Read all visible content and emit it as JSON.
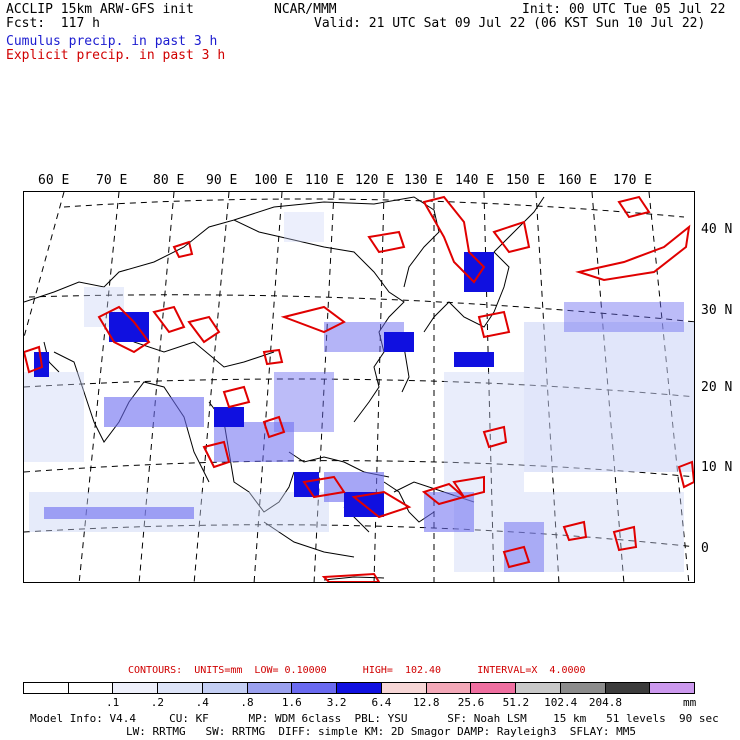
{
  "header": {
    "title_left": "ACCLIP 15km ARW-GFS init",
    "fcst": "Fcst:  117 h",
    "center": "NCAR/MMM",
    "init": "Init: 00 UTC Tue 05 Jul 22",
    "valid": "Valid: 21 UTC Sat 09 Jul 22 (06 KST Sun 10 Jul 22)",
    "cumulus_legend": "Cumulus precip. in past 3 h",
    "explicit_legend": "Explicit precip. in past 3 h"
  },
  "map": {
    "longitude_labels": [
      "60 E",
      "70 E",
      "80 E",
      "90 E",
      "100 E",
      "110 E",
      "120 E",
      "130 E",
      "140 E",
      "150 E",
      "160 E",
      "170 E"
    ],
    "latitude_labels": [
      "40 N",
      "30 N",
      "20 N",
      "10 N",
      "0"
    ],
    "colors": {
      "coast": "#000000",
      "explicit": "#e00000",
      "cumulus_light": "#c8d2f5",
      "cumulus_mid": "#6a6af0",
      "cumulus_dark": "#1010e0"
    }
  },
  "contours": {
    "text": "CONTOURS:  UNITS=mm  LOW= 0.10000      HIGH=  102.40      INTERVAL=X  4.0000"
  },
  "colorbar": {
    "colors": [
      "#ffffff",
      "#ffffff",
      "#eef0fb",
      "#dde4f8",
      "#c4cff4",
      "#9aa0ee",
      "#6a6af0",
      "#1010e0",
      "#f6d6d6",
      "#f3a8b8",
      "#ef6fa0",
      "#c8c8c8",
      "#8c8c8c",
      "#3c3c3c",
      "#cc99ee"
    ],
    "labels": [
      ".1",
      ".2",
      ".4",
      ".8",
      "1.6",
      "3.2",
      "6.4",
      "12.8",
      "25.6",
      "51.2",
      "102.4",
      "204.8"
    ],
    "units": "mm"
  },
  "model_info": {
    "line1": "Model Info: V4.4     CU: KF      MP: WDM 6class  PBL: YSU      SF: Noah LSM    15 km   51 levels  90 sec",
    "line2": "LW: RRTMG   SW: RRTMG  DIFF: simple KM: 2D Smagor DAMP: Rayleigh3  SFLAY: MM5"
  }
}
